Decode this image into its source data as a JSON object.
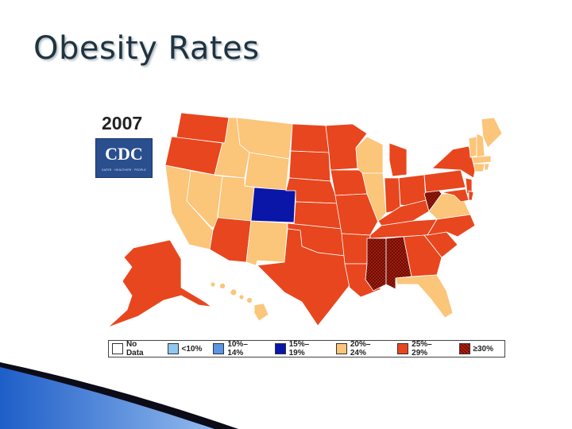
{
  "slide": {
    "title": "Obesity Rates"
  },
  "map": {
    "year": "2007",
    "logo_text": "CDC",
    "logo_tagline": "SAFER · HEALTHIER · PEOPLE",
    "colors": {
      "no_data": "#ffffff",
      "lt10": "#8ec8f0",
      "r10_14": "#5b95e3",
      "r15_19": "#0a16a8",
      "r20_24": "#fbc57a",
      "r25_29": "#e8461e",
      "ge30": "#b5200e"
    },
    "legend": [
      {
        "label": "No Data",
        "color": "#ffffff"
      },
      {
        "label": "<10%",
        "color": "#8ec8f0"
      },
      {
        "label": "10%–14%",
        "color": "#5b95e3"
      },
      {
        "label": "15%–19%",
        "color": "#0a16a8"
      },
      {
        "label": "20%–24%",
        "color": "#fbc57a"
      },
      {
        "label": "25%–29%",
        "color": "#e8461e"
      },
      {
        "label": "≥30%",
        "color": "#b5200e",
        "pattern": true
      }
    ]
  }
}
